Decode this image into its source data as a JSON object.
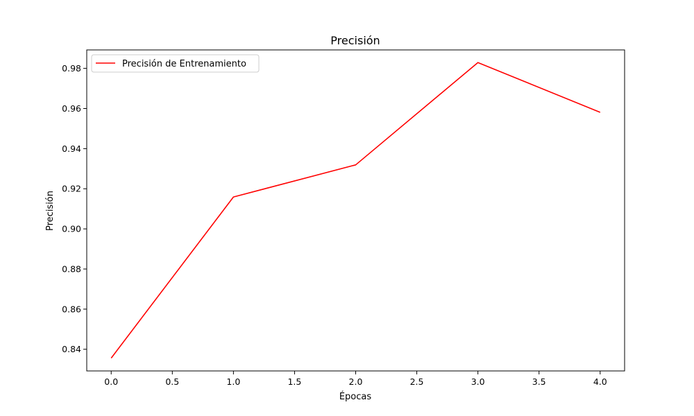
{
  "chart_data": {
    "type": "line",
    "title": "Precisión",
    "xlabel": "Épocas",
    "ylabel": "Precisión",
    "xlim": [
      -0.2,
      4.2
    ],
    "ylim": [
      0.8292,
      0.9892
    ],
    "xticks": [
      0.0,
      0.5,
      1.0,
      1.5,
      2.0,
      2.5,
      3.0,
      3.5,
      4.0
    ],
    "xtick_labels": [
      "0.0",
      "0.5",
      "1.0",
      "1.5",
      "2.0",
      "2.5",
      "3.0",
      "3.5",
      "4.0"
    ],
    "yticks": [
      0.84,
      0.86,
      0.88,
      0.9,
      0.92,
      0.94,
      0.96,
      0.98
    ],
    "ytick_labels": [
      "0.84",
      "0.86",
      "0.88",
      "0.90",
      "0.92",
      "0.94",
      "0.96",
      "0.98"
    ],
    "grid": false,
    "legend_position": "top-left",
    "series": [
      {
        "name": "Precisión de Entrenamiento",
        "color": "#ff0000",
        "x": [
          0,
          1,
          2,
          3,
          4
        ],
        "y": [
          0.8356,
          0.9159,
          0.9319,
          0.9829,
          0.9581
        ]
      }
    ]
  }
}
